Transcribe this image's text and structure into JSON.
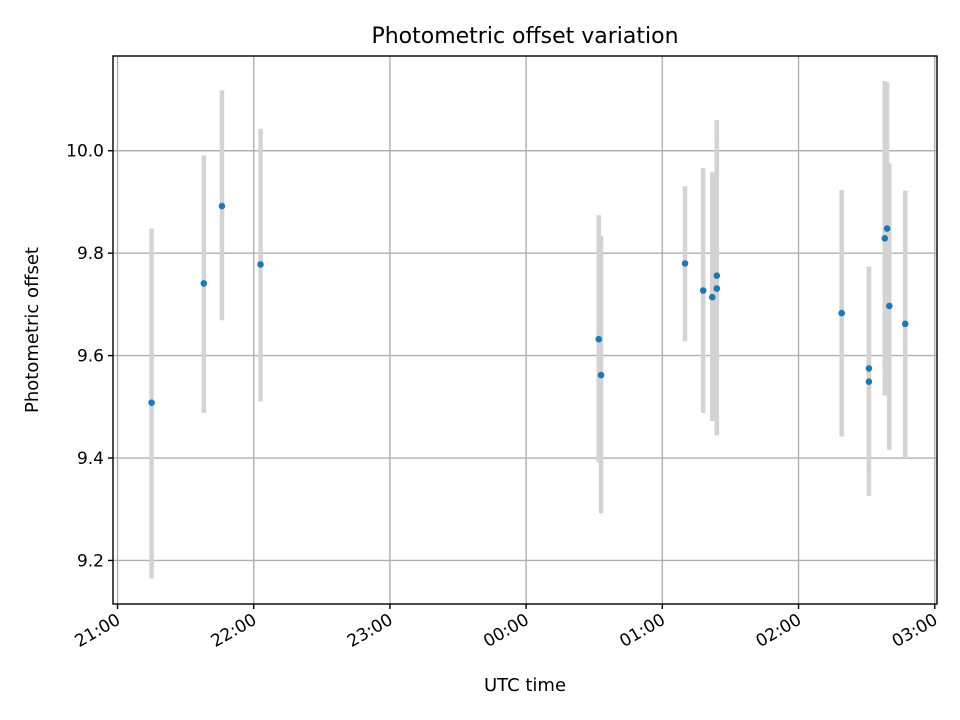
{
  "chart_data": {
    "type": "scatter",
    "title": "Photometric offset variation",
    "xlabel": "UTC time",
    "ylabel": "Photometric offset",
    "x_axis": {
      "kind": "time",
      "range": [
        "20:58",
        "03:01"
      ],
      "ticks": [
        "21:00",
        "22:00",
        "23:00",
        "00:00",
        "01:00",
        "02:00",
        "03:00"
      ]
    },
    "y_axis": {
      "range": [
        9.115,
        10.185
      ],
      "ticks": [
        "9.2",
        "9.4",
        "9.6",
        "9.8",
        "10.0"
      ]
    },
    "grid": true,
    "marker_color": "#1f77b4",
    "errorbar_color": "#d3d3d3",
    "points": [
      {
        "t": "21:15",
        "y": 9.508,
        "lo": 9.165,
        "hi": 9.848
      },
      {
        "t": "21:38",
        "y": 9.741,
        "lo": 9.488,
        "hi": 9.991
      },
      {
        "t": "21:46",
        "y": 9.892,
        "lo": 9.669,
        "hi": 10.118
      },
      {
        "t": "22:03",
        "y": 9.778,
        "lo": 9.511,
        "hi": 10.043
      },
      {
        "t": "00:32",
        "y": 9.632,
        "lo": 9.392,
        "hi": 9.874
      },
      {
        "t": "00:33",
        "y": 9.562,
        "lo": 9.292,
        "hi": 9.834
      },
      {
        "t": "01:10",
        "y": 9.78,
        "lo": 9.628,
        "hi": 9.931
      },
      {
        "t": "01:18",
        "y": 9.727,
        "lo": 9.488,
        "hi": 9.966
      },
      {
        "t": "01:22",
        "y": 9.714,
        "lo": 9.472,
        "hi": 9.958
      },
      {
        "t": "01:24",
        "y": 9.756,
        "lo": 9.452,
        "hi": 10.06
      },
      {
        "t": "01:24",
        "y": 9.731,
        "lo": 9.444,
        "hi": 10.018
      },
      {
        "t": "02:19",
        "y": 9.683,
        "lo": 9.442,
        "hi": 9.923
      },
      {
        "t": "02:31",
        "y": 9.575,
        "lo": 9.378,
        "hi": 9.774
      },
      {
        "t": "02:31",
        "y": 9.549,
        "lo": 9.326,
        "hi": 9.774
      },
      {
        "t": "02:38",
        "y": 9.829,
        "lo": 9.522,
        "hi": 10.136
      },
      {
        "t": "02:39",
        "y": 9.848,
        "lo": 9.562,
        "hi": 10.134
      },
      {
        "t": "02:40",
        "y": 9.697,
        "lo": 9.416,
        "hi": 9.975
      },
      {
        "t": "02:47",
        "y": 9.662,
        "lo": 9.4,
        "hi": 9.922
      }
    ]
  }
}
